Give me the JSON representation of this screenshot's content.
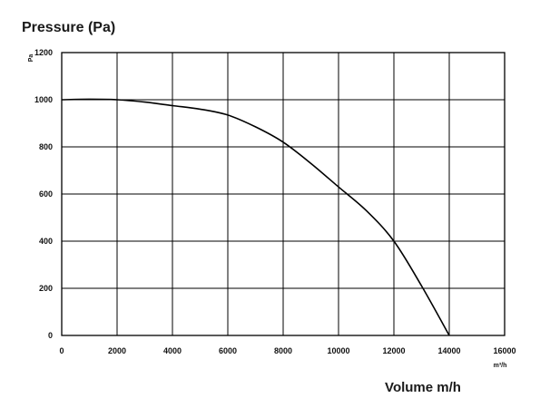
{
  "chart_data": {
    "type": "line",
    "title": "Pressure (Pa)",
    "ylabel_unit": "Pa",
    "xlabel": "Volume m/h",
    "xlabel_unit": "m³/h",
    "xlim": [
      0,
      16000
    ],
    "ylim": [
      0,
      1200
    ],
    "grid": true,
    "x_ticks": [
      "0",
      "2000",
      "4000",
      "6000",
      "8000",
      "10000",
      "12000",
      "14000",
      "16000"
    ],
    "y_ticks": [
      "0",
      "200",
      "400",
      "600",
      "800",
      "1000",
      "1200"
    ],
    "series": [
      {
        "x": [
          0,
          1000,
          2000,
          3000,
          4000,
          5000,
          6000,
          7000,
          8000,
          9000,
          10000,
          11000,
          12000,
          13000,
          14000
        ],
        "y": [
          1000,
          1002,
          1000,
          990,
          975,
          960,
          935,
          885,
          820,
          730,
          630,
          530,
          400,
          210,
          0
        ]
      }
    ]
  }
}
